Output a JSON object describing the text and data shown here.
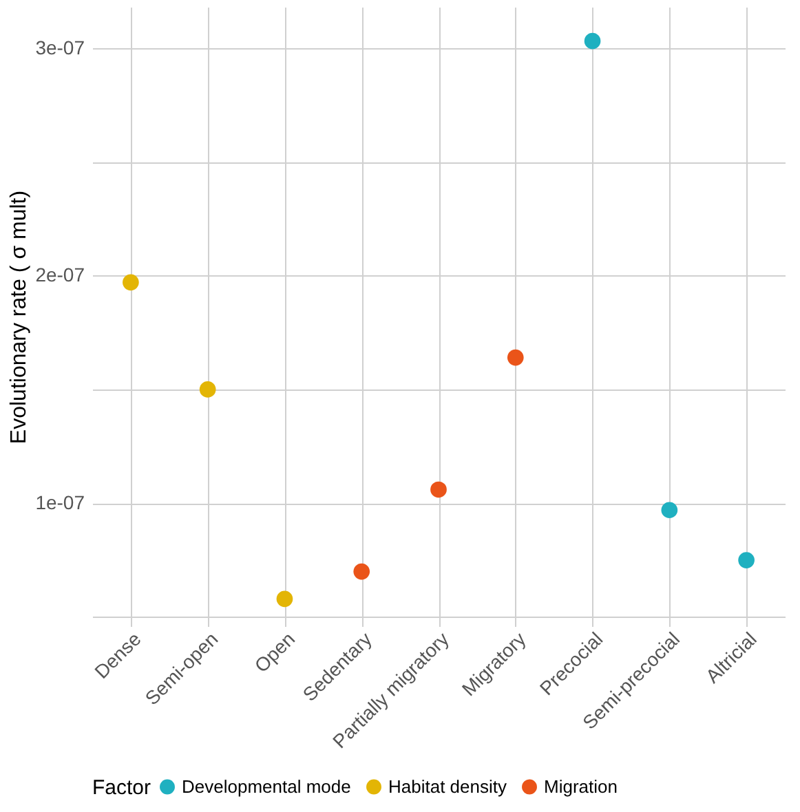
{
  "chart_data": {
    "type": "scatter",
    "ylabel": "Evolutionary rate ( σ mult)",
    "legend_title": "Factor",
    "categories": [
      "Dense",
      "Semi-open",
      "Open",
      "Sedentary",
      "Partially migratory",
      "Migratory",
      "Precocial",
      "Semi-precocial",
      "Altricial"
    ],
    "series": [
      {
        "name": "Developmental mode",
        "color": "#1fb0c0",
        "values": [
          null,
          null,
          null,
          null,
          null,
          null,
          3.03e-07,
          9.7e-08,
          7.5e-08
        ]
      },
      {
        "name": "Habitat density",
        "color": "#e3b505",
        "values": [
          1.97e-07,
          1.5e-07,
          5.8e-08,
          null,
          null,
          null,
          null,
          null,
          null
        ]
      },
      {
        "name": "Migration",
        "color": "#ea5419",
        "values": [
          null,
          null,
          null,
          7e-08,
          1.06e-07,
          1.64e-07,
          null,
          null,
          null
        ]
      }
    ],
    "ylim": [
      4.6e-08,
      3.18e-07
    ],
    "yticks": [
      {
        "value": 5e-08,
        "label": null
      },
      {
        "value": 1e-07,
        "label": "1e-07"
      },
      {
        "value": 1.5e-07,
        "label": null
      },
      {
        "value": 2e-07,
        "label": "2e-07"
      },
      {
        "value": 2.5e-07,
        "label": null
      },
      {
        "value": 3e-07,
        "label": "3e-07"
      }
    ],
    "grid": true,
    "legend": "bottom",
    "marker": "circle"
  }
}
